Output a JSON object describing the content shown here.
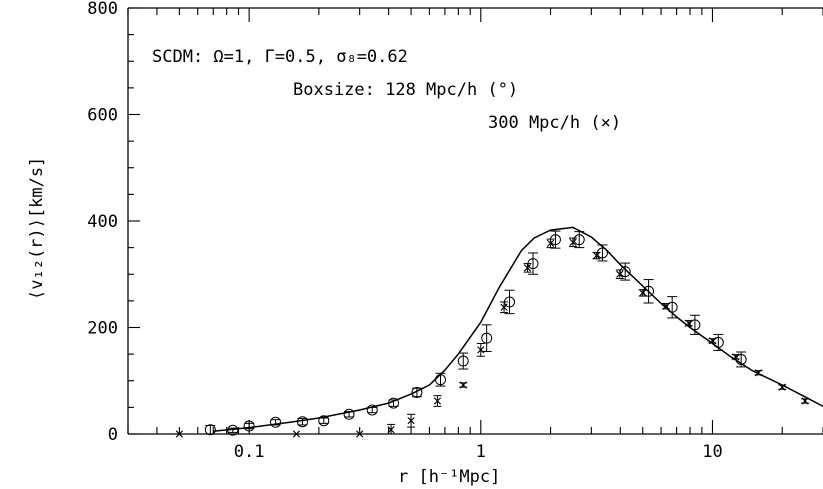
{
  "chart_data": {
    "type": "scatter",
    "xscale": "log",
    "xlim": [
      0.03,
      30
    ],
    "ylim": [
      0,
      800
    ],
    "xlabel": "r  [h⁻¹Mpc]",
    "ylabel": "⟨v₁₂(r)⟩[km/s]",
    "x_tick_labels": [
      {
        "value": 0.1,
        "label": "0.1"
      },
      {
        "value": 1,
        "label": "1"
      },
      {
        "value": 10,
        "label": "10"
      }
    ],
    "y_tick_labels": [
      {
        "value": 0,
        "label": "0"
      },
      {
        "value": 200,
        "label": "200"
      },
      {
        "value": 400,
        "label": "400"
      },
      {
        "value": 600,
        "label": "600"
      },
      {
        "value": 800,
        "label": "800"
      }
    ],
    "annotations": [
      "SCDM: Ω=1, Γ=0.5, σ₈=0.62",
      "Boxsize: 128 Mpc/h (°)",
      "300 Mpc/h (×)"
    ],
    "series": [
      {
        "marker": "line",
        "x": [
          0.07,
          0.1,
          0.15,
          0.2,
          0.3,
          0.4,
          0.5,
          0.6,
          0.7,
          0.8,
          1.0,
          1.2,
          1.5,
          1.7,
          2.0,
          2.5,
          3.0,
          3.5,
          4.0,
          5.0,
          6.0,
          7.0,
          8.0,
          10.0,
          12.0,
          15.0,
          20.0,
          25.0,
          30.0
        ],
        "y": [
          5,
          12,
          22,
          30,
          45,
          58,
          75,
          92,
          120,
          150,
          210,
          275,
          345,
          368,
          383,
          388,
          370,
          345,
          318,
          278,
          245,
          220,
          200,
          170,
          145,
          118,
          92,
          70,
          52
        ]
      },
      {
        "marker": "circle",
        "x": [
          0.068,
          0.085,
          0.1,
          0.13,
          0.17,
          0.21,
          0.27,
          0.34,
          0.42,
          0.53,
          0.67,
          0.84,
          1.06,
          1.33,
          1.68,
          2.1,
          2.66,
          3.35,
          4.2,
          5.3,
          6.7,
          8.4,
          10.6,
          13.3
        ],
        "y": [
          8,
          7,
          15,
          22,
          23,
          25,
          37,
          45,
          58,
          78,
          102,
          137,
          180,
          248,
          320,
          365,
          365,
          340,
          305,
          268,
          238,
          205,
          172,
          140
        ],
        "err": [
          8,
          4,
          5,
          5,
          6,
          5,
          5,
          5,
          6,
          8,
          12,
          15,
          25,
          22,
          20,
          16,
          15,
          15,
          16,
          22,
          20,
          18,
          15,
          14
        ]
      },
      {
        "marker": "cross",
        "x": [
          0.05,
          0.16,
          0.3,
          0.41,
          0.5,
          0.65,
          0.84,
          1.0,
          1.26,
          1.59,
          2.0,
          2.5,
          3.16,
          3.98,
          5.0,
          6.3,
          7.9,
          10.0,
          12.6,
          15.8,
          20.0,
          25.1
        ],
        "y": [
          0,
          0,
          0,
          8,
          25,
          62,
          92,
          158,
          238,
          312,
          358,
          360,
          335,
          300,
          265,
          240,
          208,
          175,
          145,
          115,
          88,
          62
        ],
        "err": [
          0,
          0,
          0,
          10,
          12,
          10,
          4,
          12,
          10,
          8,
          8,
          8,
          6,
          8,
          6,
          5,
          5,
          4,
          4,
          4,
          4,
          4
        ]
      }
    ]
  }
}
